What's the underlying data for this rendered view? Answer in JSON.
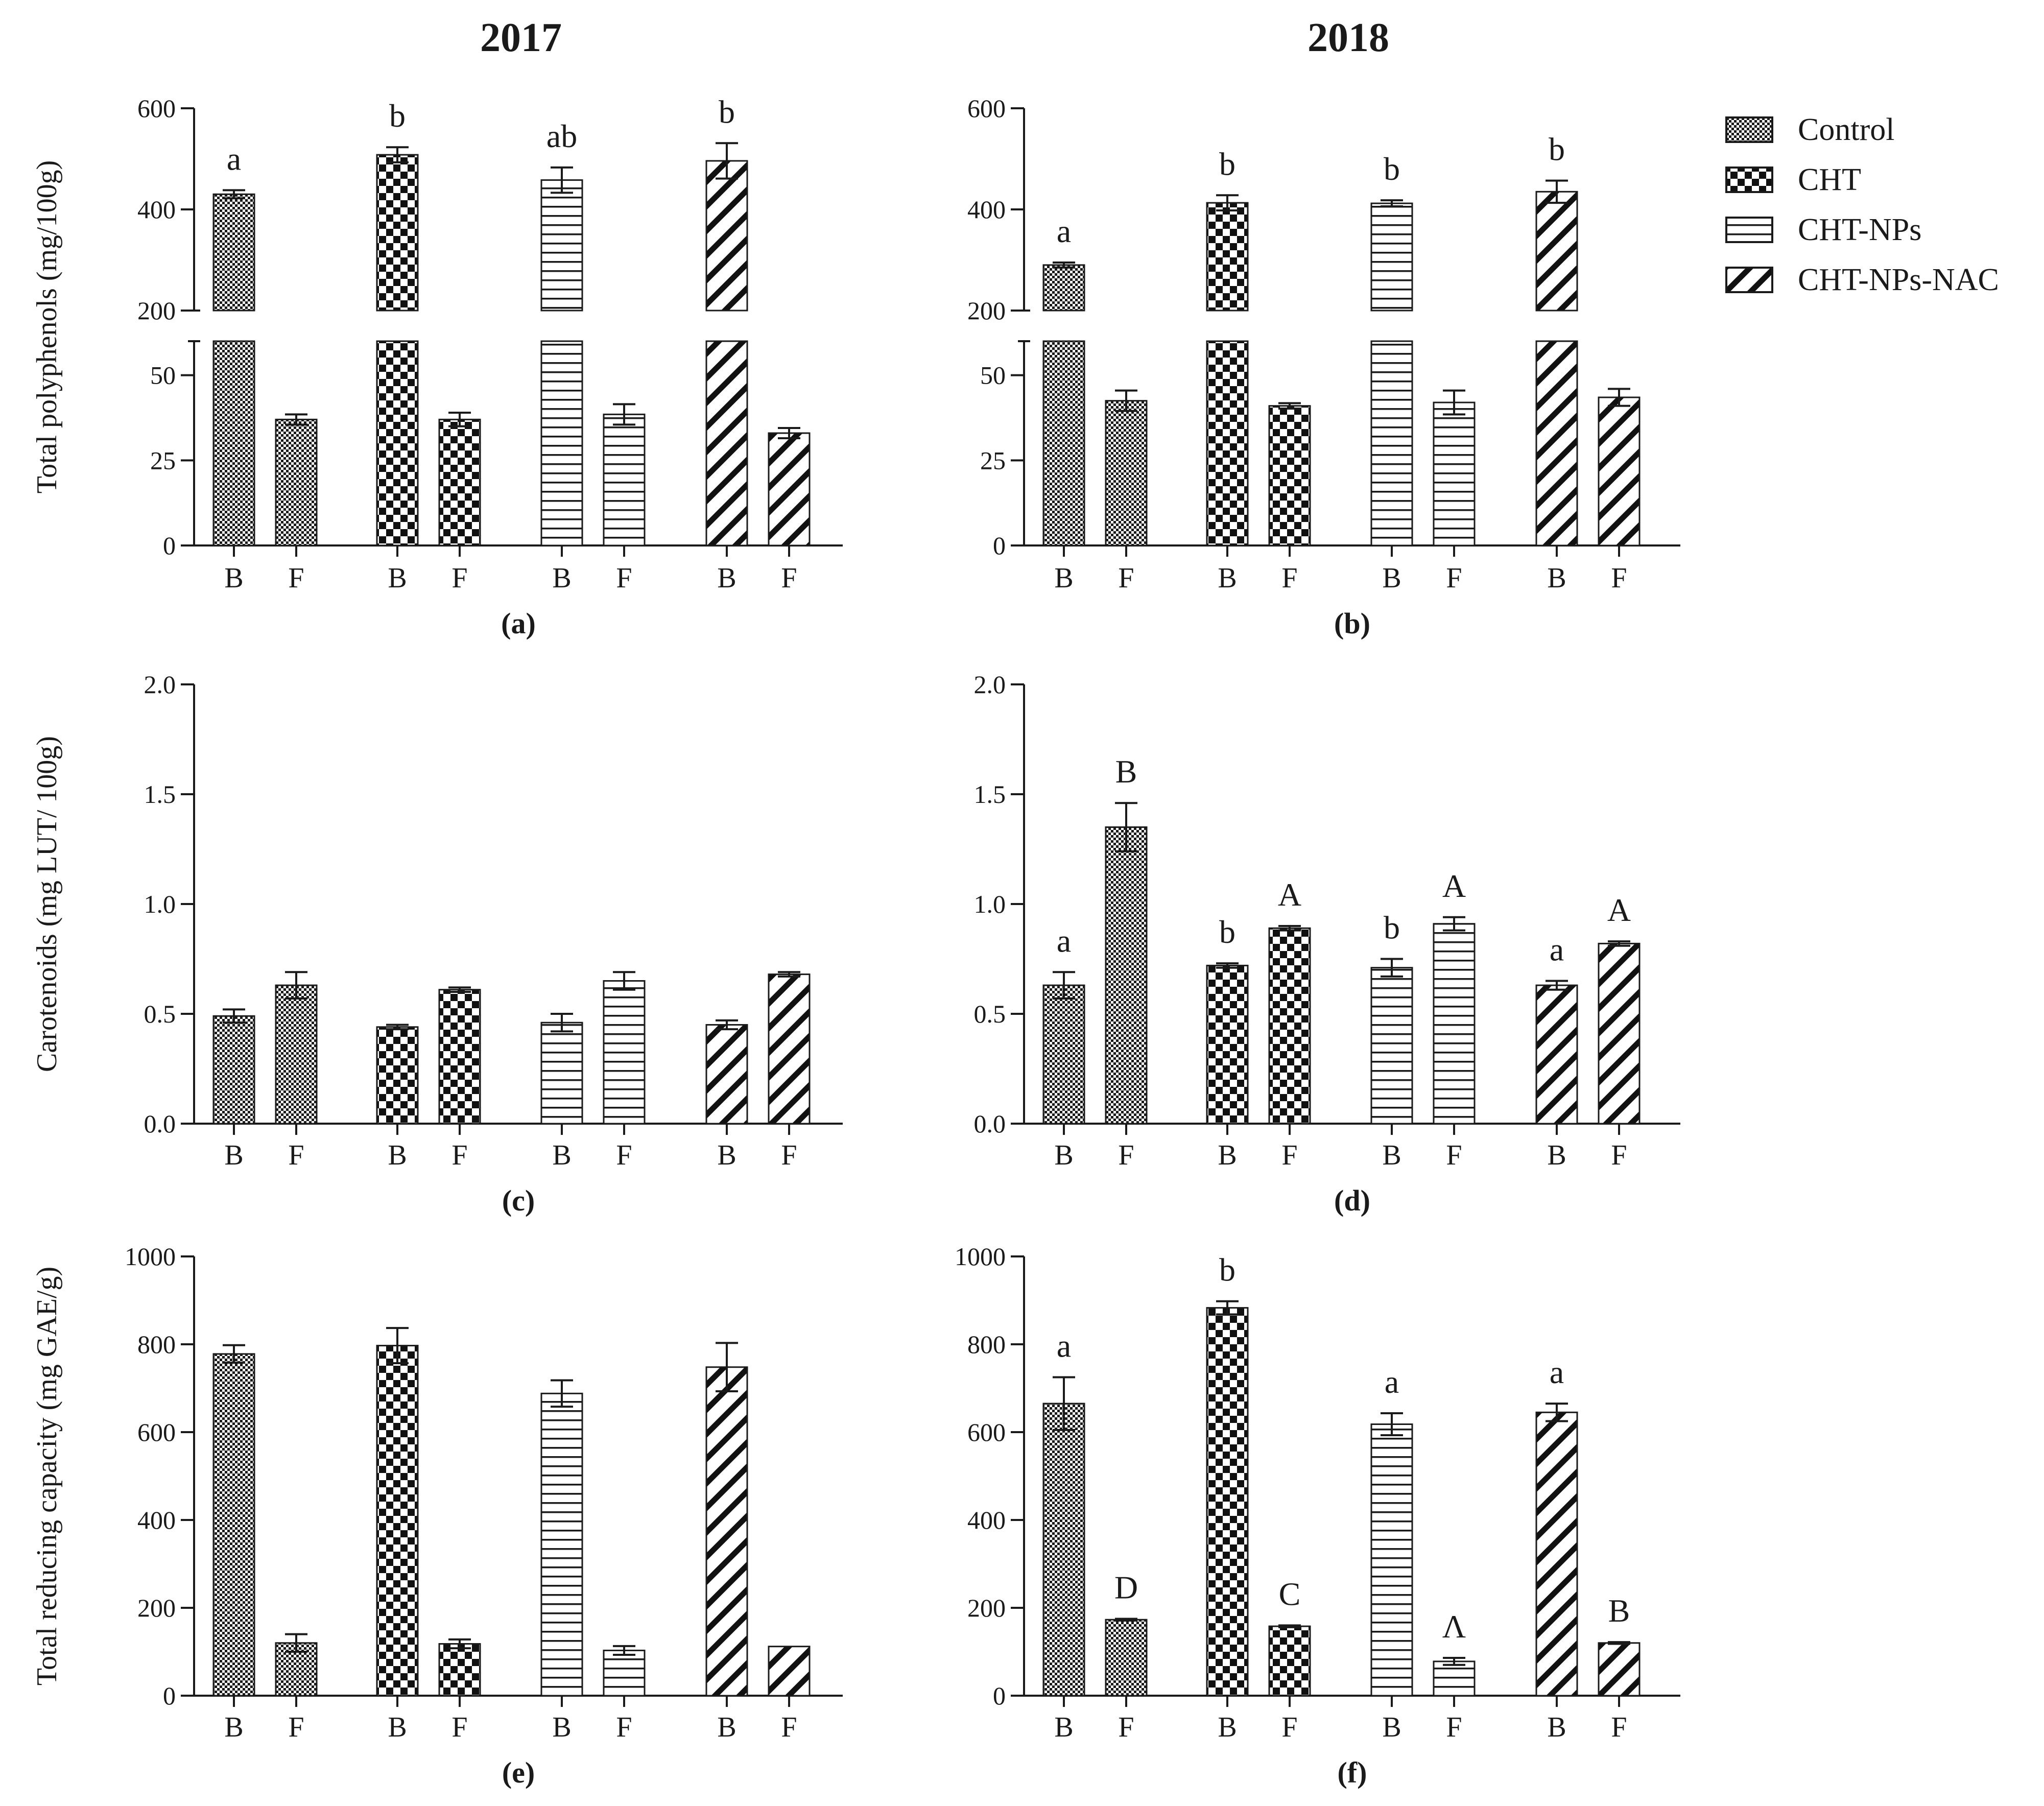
{
  "chart_data": {
    "type": "bar",
    "title": "",
    "column_titles": [
      "2017",
      "2018"
    ],
    "legend": [
      {
        "name": "Control",
        "pattern": "checker-fine"
      },
      {
        "name": "CHT",
        "pattern": "checker-bold"
      },
      {
        "name": "CHT-NPs",
        "pattern": "horizontal"
      },
      {
        "name": "CHT-NPs-NAC",
        "pattern": "diagonal"
      }
    ],
    "categories": [
      "B",
      "F"
    ],
    "panels": [
      {
        "id": "a",
        "label": "(a)",
        "year": "2017",
        "ylabel": "Total polyphenols (mg/100g)",
        "broken_axis": true,
        "lower_range": [
          0,
          60
        ],
        "lower_ticks": [
          0,
          25,
          50
        ],
        "upper_range": [
          200,
          600
        ],
        "upper_ticks": [
          200,
          400,
          600
        ],
        "series": [
          {
            "name": "Control",
            "values": [
              430,
              37
            ],
            "errors": [
              8,
              1.5
            ],
            "letters": [
              "a",
              ""
            ]
          },
          {
            "name": "CHT",
            "values": [
              508,
              37
            ],
            "errors": [
              15,
              2
            ],
            "letters": [
              "b",
              ""
            ]
          },
          {
            "name": "CHT-NPs",
            "values": [
              458,
              38.5
            ],
            "errors": [
              25,
              3
            ],
            "letters": [
              "ab",
              ""
            ]
          },
          {
            "name": "CHT-NPs-NAC",
            "values": [
              496,
              33
            ],
            "errors": [
              35,
              1.5
            ],
            "letters": [
              "b",
              ""
            ]
          }
        ]
      },
      {
        "id": "b",
        "label": "(b)",
        "year": "2018",
        "ylabel": "",
        "broken_axis": true,
        "lower_range": [
          0,
          60
        ],
        "lower_ticks": [
          0,
          25,
          50
        ],
        "upper_range": [
          200,
          600
        ],
        "upper_ticks": [
          200,
          400,
          600
        ],
        "series": [
          {
            "name": "Control",
            "values": [
              290,
              42.5
            ],
            "errors": [
              5,
              3
            ],
            "letters": [
              "a",
              ""
            ]
          },
          {
            "name": "CHT",
            "values": [
              413,
              41
            ],
            "errors": [
              15,
              0.8
            ],
            "letters": [
              "b",
              ""
            ]
          },
          {
            "name": "CHT-NPs",
            "values": [
              412,
              42
            ],
            "errors": [
              6,
              3.5
            ],
            "letters": [
              "b",
              ""
            ]
          },
          {
            "name": "CHT-NPs-NAC",
            "values": [
              435,
              43.5
            ],
            "errors": [
              22,
              2.5
            ],
            "letters": [
              "b",
              ""
            ]
          }
        ]
      },
      {
        "id": "c",
        "label": "(c)",
        "year": "2017",
        "ylabel": "Carotenoids (mg LUT/ 100g)",
        "broken_axis": false,
        "ylim": [
          0,
          2.0
        ],
        "ticks": [
          "0.0",
          "0.5",
          "1.0",
          "1.5",
          "2.0"
        ],
        "series": [
          {
            "name": "Control",
            "values": [
              0.49,
              0.63
            ],
            "errors": [
              0.03,
              0.06
            ],
            "letters": [
              "",
              ""
            ]
          },
          {
            "name": "CHT",
            "values": [
              0.44,
              0.61
            ],
            "errors": [
              0.01,
              0.01
            ],
            "letters": [
              "",
              ""
            ]
          },
          {
            "name": "CHT-NPs",
            "values": [
              0.46,
              0.65
            ],
            "errors": [
              0.04,
              0.04
            ],
            "letters": [
              "",
              ""
            ]
          },
          {
            "name": "CHT-NPs-NAC",
            "values": [
              0.45,
              0.68
            ],
            "errors": [
              0.02,
              0.01
            ],
            "letters": [
              "",
              ""
            ]
          }
        ]
      },
      {
        "id": "d",
        "label": "(d)",
        "year": "2018",
        "ylabel": "",
        "broken_axis": false,
        "ylim": [
          0,
          2.0
        ],
        "ticks": [
          "0.0",
          "0.5",
          "1.0",
          "1.5",
          "2.0"
        ],
        "series": [
          {
            "name": "Control",
            "values": [
              0.63,
              1.35
            ],
            "errors": [
              0.06,
              0.11
            ],
            "letters": [
              "a",
              "B"
            ]
          },
          {
            "name": "CHT",
            "values": [
              0.72,
              0.89
            ],
            "errors": [
              0.01,
              0.01
            ],
            "letters": [
              "b",
              "A"
            ]
          },
          {
            "name": "CHT-NPs",
            "values": [
              0.71,
              0.91
            ],
            "errors": [
              0.04,
              0.03
            ],
            "letters": [
              "b",
              "A"
            ]
          },
          {
            "name": "CHT-NPs-NAC",
            "values": [
              0.63,
              0.82
            ],
            "errors": [
              0.02,
              0.01
            ],
            "letters": [
              "a",
              "A"
            ]
          }
        ]
      },
      {
        "id": "e",
        "label": "(e)",
        "year": "2017",
        "ylabel": "Total reducing capacity (mg GAE/g)",
        "broken_axis": false,
        "ylim": [
          0,
          1000
        ],
        "ticks": [
          "0",
          "200",
          "400",
          "600",
          "800",
          "1000"
        ],
        "series": [
          {
            "name": "Control",
            "values": [
              778,
              120
            ],
            "errors": [
              20,
              20
            ],
            "letters": [
              "",
              ""
            ]
          },
          {
            "name": "CHT",
            "values": [
              797,
              118
            ],
            "errors": [
              40,
              10
            ],
            "letters": [
              "",
              ""
            ]
          },
          {
            "name": "CHT-NPs",
            "values": [
              688,
              103
            ],
            "errors": [
              30,
              10
            ],
            "letters": [
              "",
              ""
            ]
          },
          {
            "name": "CHT-NPs-NAC",
            "values": [
              748,
              112
            ],
            "errors": [
              55,
              0
            ],
            "letters": [
              "",
              ""
            ]
          }
        ]
      },
      {
        "id": "f",
        "label": "(f)",
        "year": "2018",
        "ylabel": "",
        "broken_axis": false,
        "ylim": [
          0,
          1000
        ],
        "ticks": [
          "0",
          "200",
          "400",
          "600",
          "800",
          "1000"
        ],
        "series": [
          {
            "name": "Control",
            "values": [
              665,
              173
            ],
            "errors": [
              60,
              2
            ],
            "letters": [
              "a",
              "D"
            ]
          },
          {
            "name": "CHT",
            "values": [
              883,
              158
            ],
            "errors": [
              15,
              2
            ],
            "letters": [
              "b",
              "C"
            ]
          },
          {
            "name": "CHT-NPs",
            "values": [
              618,
              78
            ],
            "errors": [
              25,
              8
            ],
            "letters": [
              "a",
              "Λ"
            ]
          },
          {
            "name": "CHT-NPs-NAC",
            "values": [
              645,
              120
            ],
            "errors": [
              20,
              2
            ],
            "letters": [
              "a",
              "B"
            ]
          }
        ]
      }
    ]
  }
}
